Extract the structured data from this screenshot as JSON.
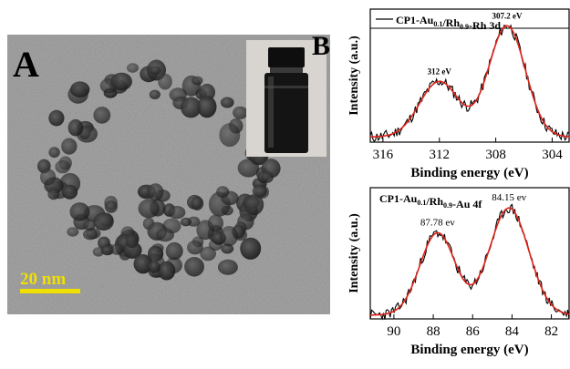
{
  "panel_a": {
    "label": "A",
    "scale_bar_text": "20 nm",
    "colors": {
      "scale_bar": "#f0e000",
      "background": "#8a8a8a",
      "particle": "#2a2a2a"
    }
  },
  "panel_b": {
    "label": "B",
    "colors": {
      "raw": "#000000",
      "fit": "#e0241b"
    }
  },
  "chart_data": [
    {
      "type": "line",
      "title": "",
      "legend": {
        "text_main": "CP1-Au",
        "sub1": "0.1",
        "mid": "/Rh",
        "sub2": "0.9",
        "tail": "-Rh 3d",
        "placement": "top"
      },
      "xlabel": "Binding energy (eV)",
      "ylabel": "Intensity (a.u.)",
      "xlim": [
        316.9,
        302.8
      ],
      "x_reversed": true,
      "x_ticks": [
        316,
        312,
        308,
        304
      ],
      "peaks": [
        {
          "x": 312.0,
          "label": "312 eV",
          "height": 0.44,
          "width": 1.4
        },
        {
          "x": 307.2,
          "label": "307.2 eV",
          "height": 0.88,
          "width": 1.3
        }
      ],
      "baseline": 0.04,
      "series": [
        {
          "name": "raw",
          "style": "noisy"
        },
        {
          "name": "fit",
          "style": "smooth"
        }
      ]
    },
    {
      "type": "line",
      "title": "",
      "legend": {
        "text_main": "CP1-Au",
        "sub1": "0.1",
        "mid": "/Rh",
        "sub2": "0.9",
        "tail": "-Au 4f",
        "placement": "top"
      },
      "xlabel": "Binding energy (eV)",
      "ylabel": "Intensity (a.u.)",
      "xlim": [
        91.2,
        81.1
      ],
      "x_reversed": true,
      "x_ticks": [
        90,
        88,
        86,
        84,
        82
      ],
      "peaks": [
        {
          "x": 87.78,
          "label": "87.78 ev",
          "height": 0.66,
          "width": 0.9
        },
        {
          "x": 84.15,
          "label": "84.15 ev",
          "height": 0.86,
          "width": 1.0
        }
      ],
      "baseline": 0.03,
      "series": [
        {
          "name": "raw",
          "style": "noisy"
        },
        {
          "name": "fit",
          "style": "smooth"
        }
      ]
    }
  ]
}
